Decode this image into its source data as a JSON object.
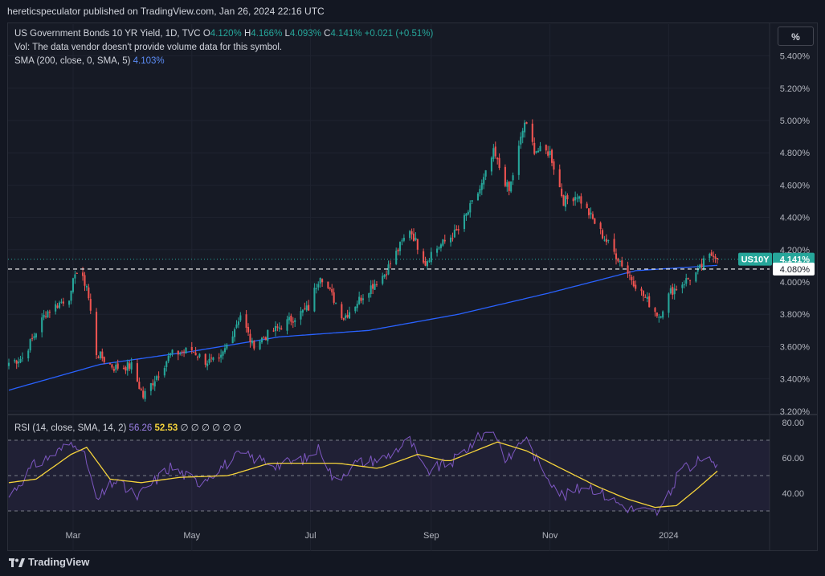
{
  "header": {
    "publish_text": "hereticspeculator published on TradingView.com, Jan 26, 2024 22:16 UTC"
  },
  "legend": {
    "symbol": "US Government Bonds 10 YR Yield, 1D, TVC",
    "o_label": "O",
    "o_val": "4.120%",
    "h_label": "H",
    "h_val": "4.166%",
    "l_label": "L",
    "l_val": "4.093%",
    "c_label": "C",
    "c_val": "4.141%",
    "change": "+0.021 (+0.51%)",
    "vol_note": "Vol: The data vendor doesn't provide volume data for this symbol.",
    "sma_label": "SMA (200, close, 0, SMA, 5)",
    "sma_val": "4.103%",
    "rsi_label": "RSI (14, close, SMA, 14, 2)",
    "rsi_val": "56.26",
    "rsi_ma_val": "52.53",
    "rsi_empty": "∅ ∅ ∅ ∅ ∅ ∅"
  },
  "toolbar": {
    "pct_button": "%"
  },
  "footer": {
    "brand": "TradingView"
  },
  "colors": {
    "up": "#26a69a",
    "down": "#ef5350",
    "sma": "#2962ff",
    "rsi": "#7e57c2",
    "rsi_ma": "#f5d33b",
    "bg": "#161a25"
  },
  "chart_data": [
    {
      "type": "candlestick",
      "title": "US Government Bonds 10 YR Yield, 1D, TVC",
      "y_ticks": [
        "5.400%",
        "5.200%",
        "5.000%",
        "4.800%",
        "4.600%",
        "4.400%",
        "4.200%",
        "4.000%",
        "3.800%",
        "3.600%",
        "3.400%",
        "3.200%"
      ],
      "ylim": [
        3.2,
        5.45
      ],
      "x_ticks": [
        "Mar",
        "May",
        "Jul",
        "Sep",
        "Nov",
        "2024"
      ],
      "price_tag": {
        "label": "US10Y",
        "value": "4.141%"
      },
      "dashed_level": {
        "label": "4.080%",
        "value": 4.08
      },
      "close_anchors": [
        [
          "2023-01-27",
          3.5
        ],
        [
          "2023-02-03",
          3.53
        ],
        [
          "2023-02-15",
          3.81
        ],
        [
          "2023-02-28",
          3.92
        ],
        [
          "2023-03-02",
          4.07
        ],
        [
          "2023-03-08",
          3.98
        ],
        [
          "2023-03-13",
          3.56
        ],
        [
          "2023-03-22",
          3.47
        ],
        [
          "2023-03-31",
          3.48
        ],
        [
          "2023-04-06",
          3.29
        ],
        [
          "2023-04-20",
          3.55
        ],
        [
          "2023-05-01",
          3.58
        ],
        [
          "2023-05-08",
          3.51
        ],
        [
          "2023-05-15",
          3.5
        ],
        [
          "2023-05-26",
          3.8
        ],
        [
          "2023-06-01",
          3.61
        ],
        [
          "2023-06-15",
          3.72
        ],
        [
          "2023-06-30",
          3.84
        ],
        [
          "2023-07-06",
          4.05
        ],
        [
          "2023-07-18",
          3.78
        ],
        [
          "2023-07-31",
          3.96
        ],
        [
          "2023-08-08",
          4.05
        ],
        [
          "2023-08-21",
          4.33
        ],
        [
          "2023-08-29",
          4.12
        ],
        [
          "2023-09-01",
          4.18
        ],
        [
          "2023-09-15",
          4.32
        ],
        [
          "2023-09-27",
          4.6
        ],
        [
          "2023-10-03",
          4.8
        ],
        [
          "2023-10-11",
          4.56
        ],
        [
          "2023-10-19",
          4.99
        ],
        [
          "2023-10-24",
          4.82
        ],
        [
          "2023-11-01",
          4.8
        ],
        [
          "2023-11-08",
          4.5
        ],
        [
          "2023-11-15",
          4.54
        ],
        [
          "2023-11-29",
          4.27
        ],
        [
          "2023-12-07",
          4.13
        ],
        [
          "2023-12-13",
          4.02
        ],
        [
          "2023-12-18",
          3.93
        ],
        [
          "2023-12-27",
          3.79
        ],
        [
          "2024-01-02",
          3.94
        ],
        [
          "2024-01-10",
          4.01
        ],
        [
          "2024-01-16",
          4.06
        ],
        [
          "2024-01-19",
          4.12
        ],
        [
          "2024-01-24",
          4.18
        ],
        [
          "2024-01-26",
          4.141
        ]
      ],
      "sma200": [
        [
          "2023-01-27",
          3.33
        ],
        [
          "2023-03-15",
          3.49
        ],
        [
          "2023-05-01",
          3.57
        ],
        [
          "2023-06-15",
          3.66
        ],
        [
          "2023-07-31",
          3.7
        ],
        [
          "2023-09-15",
          3.8
        ],
        [
          "2023-10-31",
          3.93
        ],
        [
          "2023-12-15",
          4.07
        ],
        [
          "2024-01-26",
          4.103
        ]
      ]
    },
    {
      "type": "line",
      "title": "RSI (14, close, SMA, 14, 2)",
      "y_ticks": [
        "80.00",
        "60.00",
        "40.00"
      ],
      "bands": [
        70,
        50,
        30
      ],
      "ylim": [
        25,
        80
      ],
      "rsi_anchors": [
        [
          "2023-01-27",
          38
        ],
        [
          "2023-02-08",
          55
        ],
        [
          "2023-02-22",
          64
        ],
        [
          "2023-03-02",
          70
        ],
        [
          "2023-03-08",
          58
        ],
        [
          "2023-03-13",
          35
        ],
        [
          "2023-03-22",
          47
        ],
        [
          "2023-04-03",
          38
        ],
        [
          "2023-04-20",
          55
        ],
        [
          "2023-05-04",
          46
        ],
        [
          "2023-05-26",
          62
        ],
        [
          "2023-06-15",
          56
        ],
        [
          "2023-06-30",
          60
        ],
        [
          "2023-07-06",
          66
        ],
        [
          "2023-07-13",
          47
        ],
        [
          "2023-07-24",
          57
        ],
        [
          "2023-08-08",
          60
        ],
        [
          "2023-08-21",
          70
        ],
        [
          "2023-08-29",
          52
        ],
        [
          "2023-09-12",
          58
        ],
        [
          "2023-09-27",
          73
        ],
        [
          "2023-10-03",
          76
        ],
        [
          "2023-10-10",
          58
        ],
        [
          "2023-10-19",
          72
        ],
        [
          "2023-10-26",
          57
        ],
        [
          "2023-11-08",
          38
        ],
        [
          "2023-11-20",
          45
        ],
        [
          "2023-12-05",
          35
        ],
        [
          "2023-12-13",
          31
        ],
        [
          "2023-12-19",
          30
        ],
        [
          "2023-12-27",
          29
        ],
        [
          "2024-01-02",
          40
        ],
        [
          "2024-01-08",
          58
        ],
        [
          "2024-01-12",
          53
        ],
        [
          "2024-01-19",
          61
        ],
        [
          "2024-01-24",
          55
        ],
        [
          "2024-01-26",
          56.26
        ]
      ],
      "rsi_ma_anchors": [
        [
          "2023-01-27",
          46
        ],
        [
          "2023-02-10",
          48
        ],
        [
          "2023-02-28",
          62
        ],
        [
          "2023-03-08",
          66
        ],
        [
          "2023-03-20",
          48
        ],
        [
          "2023-04-05",
          46
        ],
        [
          "2023-04-25",
          49
        ],
        [
          "2023-05-20",
          50
        ],
        [
          "2023-06-10",
          57
        ],
        [
          "2023-07-15",
          57
        ],
        [
          "2023-08-05",
          54
        ],
        [
          "2023-08-25",
          62
        ],
        [
          "2023-09-10",
          58
        ],
        [
          "2023-10-05",
          69
        ],
        [
          "2023-10-20",
          64
        ],
        [
          "2023-11-05",
          55
        ],
        [
          "2023-11-25",
          44
        ],
        [
          "2023-12-10",
          37
        ],
        [
          "2023-12-25",
          32
        ],
        [
          "2024-01-05",
          33
        ],
        [
          "2024-01-15",
          42
        ],
        [
          "2024-01-26",
          52.53
        ]
      ]
    }
  ]
}
